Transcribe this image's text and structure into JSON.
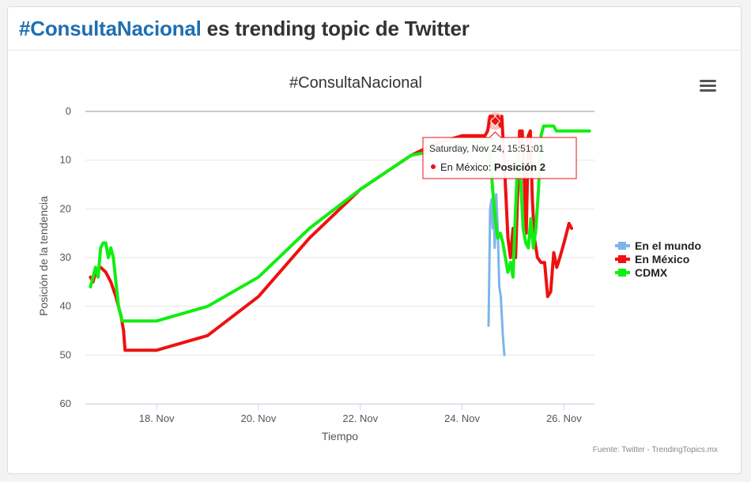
{
  "header": {
    "hashtag": "#ConsultaNacional",
    "rest": " es trending topic de Twitter"
  },
  "menu": {
    "icon": "hamburger-menu-icon"
  },
  "credits": "Fuente: Twitter - TrendingTopics.mx",
  "tooltip": {
    "date": "Saturday, Nov 24, 15:51:01",
    "series": "En México",
    "label": "Posición 2",
    "x": 24.65,
    "y": 2
  },
  "chart_data": {
    "type": "line",
    "title": "#ConsultaNacional",
    "xlabel": "Tiempo",
    "ylabel": "Posición de la tendencia",
    "xlim": [
      16.6,
      26.6
    ],
    "ylim": [
      0,
      60
    ],
    "y_reversed": true,
    "x_ticks": [
      {
        "value": 18,
        "label": "18. Nov"
      },
      {
        "value": 20,
        "label": "20. Nov"
      },
      {
        "value": 22,
        "label": "22. Nov"
      },
      {
        "value": 24,
        "label": "24. Nov"
      },
      {
        "value": 26,
        "label": "26. Nov"
      }
    ],
    "y_ticks": [
      0,
      10,
      20,
      30,
      40,
      50,
      60
    ],
    "grid": true,
    "legend_position": "right",
    "series": [
      {
        "name": "En el mundo",
        "color": "#7cb5ec",
        "points": [
          [
            24.52,
            44
          ],
          [
            24.55,
            20
          ],
          [
            24.58,
            18
          ],
          [
            24.6,
            24
          ],
          [
            24.62,
            20
          ],
          [
            24.64,
            28
          ],
          [
            24.67,
            17
          ],
          [
            24.7,
            24
          ],
          [
            24.73,
            36
          ],
          [
            24.76,
            38
          ],
          [
            24.8,
            46
          ],
          [
            24.83,
            50
          ]
        ]
      },
      {
        "name": "En México",
        "color": "#ee1111",
        "points": [
          [
            16.7,
            34
          ],
          [
            16.75,
            35
          ],
          [
            16.8,
            33
          ],
          [
            16.9,
            32
          ],
          [
            17.0,
            33
          ],
          [
            17.1,
            35
          ],
          [
            17.2,
            38
          ],
          [
            17.3,
            42
          ],
          [
            17.35,
            45
          ],
          [
            17.38,
            49
          ],
          [
            18.0,
            49
          ],
          [
            19.0,
            46
          ],
          [
            20.0,
            38
          ],
          [
            21.0,
            26
          ],
          [
            22.0,
            16
          ],
          [
            23.0,
            9
          ],
          [
            23.5,
            6.5
          ],
          [
            24.0,
            5
          ],
          [
            24.45,
            5
          ],
          [
            24.5,
            4
          ],
          [
            24.55,
            1
          ],
          [
            24.6,
            1
          ],
          [
            24.65,
            2
          ],
          [
            24.7,
            1
          ],
          [
            24.75,
            3
          ],
          [
            24.78,
            1
          ],
          [
            24.82,
            9
          ],
          [
            24.86,
            17
          ],
          [
            24.9,
            26
          ],
          [
            24.95,
            30
          ],
          [
            25.0,
            24
          ],
          [
            25.05,
            30
          ],
          [
            25.1,
            14
          ],
          [
            25.13,
            4
          ],
          [
            25.18,
            4
          ],
          [
            25.22,
            14
          ],
          [
            25.26,
            25
          ],
          [
            25.3,
            5
          ],
          [
            25.34,
            4
          ],
          [
            25.38,
            18
          ],
          [
            25.42,
            26
          ],
          [
            25.48,
            30
          ],
          [
            25.55,
            31
          ],
          [
            25.62,
            31
          ],
          [
            25.68,
            38
          ],
          [
            25.74,
            37
          ],
          [
            25.8,
            29
          ],
          [
            25.86,
            32
          ],
          [
            25.92,
            30
          ],
          [
            26.0,
            27
          ],
          [
            26.05,
            25
          ],
          [
            26.1,
            23
          ],
          [
            26.15,
            24
          ]
        ]
      },
      {
        "name": "CDMX",
        "color": "#11ee11",
        "points": [
          [
            16.7,
            36
          ],
          [
            16.75,
            34
          ],
          [
            16.8,
            32
          ],
          [
            16.85,
            34
          ],
          [
            16.9,
            28
          ],
          [
            16.95,
            27
          ],
          [
            17.0,
            27
          ],
          [
            17.05,
            30
          ],
          [
            17.1,
            28
          ],
          [
            17.15,
            30
          ],
          [
            17.2,
            35
          ],
          [
            17.25,
            40
          ],
          [
            17.32,
            43
          ],
          [
            18.0,
            43
          ],
          [
            19.0,
            40
          ],
          [
            20.0,
            34
          ],
          [
            21.0,
            24
          ],
          [
            22.0,
            16
          ],
          [
            23.0,
            9
          ],
          [
            24.0,
            7
          ],
          [
            24.3,
            6
          ],
          [
            24.45,
            7
          ],
          [
            24.5,
            6
          ],
          [
            24.55,
            9
          ],
          [
            24.6,
            16
          ],
          [
            24.65,
            22
          ],
          [
            24.7,
            26
          ],
          [
            24.75,
            25
          ],
          [
            24.8,
            27
          ],
          [
            24.85,
            30
          ],
          [
            24.9,
            33
          ],
          [
            24.95,
            31
          ],
          [
            25.0,
            34
          ],
          [
            25.05,
            20
          ],
          [
            25.1,
            8
          ],
          [
            25.15,
            14
          ],
          [
            25.2,
            24
          ],
          [
            25.25,
            27
          ],
          [
            25.3,
            28
          ],
          [
            25.35,
            22
          ],
          [
            25.4,
            28
          ],
          [
            25.45,
            24
          ],
          [
            25.5,
            16
          ],
          [
            25.55,
            5
          ],
          [
            25.6,
            3
          ],
          [
            25.65,
            3
          ],
          [
            25.7,
            3
          ],
          [
            25.8,
            3
          ],
          [
            25.85,
            4
          ],
          [
            26.0,
            4
          ],
          [
            26.2,
            4
          ],
          [
            26.5,
            4
          ]
        ]
      }
    ]
  }
}
